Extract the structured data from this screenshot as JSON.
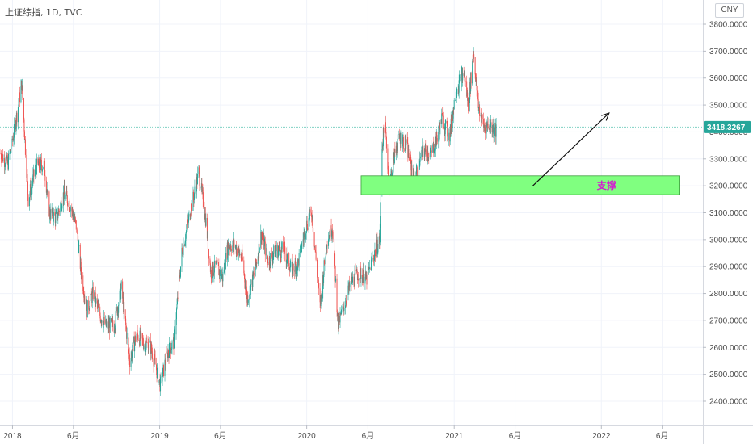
{
  "header": {
    "symbol_line": "上证综指, 1D, TVC",
    "currency": "CNY"
  },
  "chart_data": {
    "type": "candlestick",
    "title": "上证综指",
    "interval": "1D",
    "source": "TVC",
    "currency": "CNY",
    "ylim": [
      2310,
      3890
    ],
    "y_ticks": [
      2400,
      2500,
      2600,
      2700,
      2800,
      2900,
      3000,
      3100,
      3200,
      3300,
      3400,
      3500,
      3600,
      3700,
      3800
    ],
    "y_tick_labels": [
      "2400.0000",
      "2500.0000",
      "2600.0000",
      "2700.0000",
      "2800.0000",
      "2900.0000",
      "3000.0000",
      "3100.0000",
      "3200.0000",
      "3300.0000",
      "3400.0000",
      "3500.0000",
      "3600.0000",
      "3700.0000",
      "3800.0000"
    ],
    "x_ticks": [
      {
        "label": "2018",
        "date": "2018-01-01"
      },
      {
        "label": "6月",
        "date": "2018-06-01"
      },
      {
        "label": "2019",
        "date": "2019-01-01"
      },
      {
        "label": "6月",
        "date": "2019-06-01"
      },
      {
        "label": "2020",
        "date": "2020-01-01"
      },
      {
        "label": "6月",
        "date": "2020-06-01"
      },
      {
        "label": "2021",
        "date": "2021-01-01"
      },
      {
        "label": "6月",
        "date": "2021-06-01"
      },
      {
        "label": "2022",
        "date": "2022-01-01"
      },
      {
        "label": "6月",
        "date": "2022-06-01"
      }
    ],
    "last_price": 3418.3267,
    "last_price_label": "3418.3267",
    "price_path": [
      [
        "2017-12-01",
        3320
      ],
      [
        "2017-12-20",
        3280
      ],
      [
        "2018-01-05",
        3400
      ],
      [
        "2018-01-24",
        3580
      ],
      [
        "2018-02-09",
        3150
      ],
      [
        "2018-02-28",
        3270
      ],
      [
        "2018-03-20",
        3280
      ],
      [
        "2018-04-03",
        3100
      ],
      [
        "2018-04-20",
        3080
      ],
      [
        "2018-05-08",
        3170
      ],
      [
        "2018-05-22",
        3140
      ],
      [
        "2018-06-08",
        3050
      ],
      [
        "2018-06-20",
        2880
      ],
      [
        "2018-07-05",
        2740
      ],
      [
        "2018-07-20",
        2800
      ],
      [
        "2018-08-06",
        2720
      ],
      [
        "2018-08-20",
        2680
      ],
      [
        "2018-09-10",
        2680
      ],
      [
        "2018-09-28",
        2820
      ],
      [
        "2018-10-19",
        2550
      ],
      [
        "2018-11-05",
        2650
      ],
      [
        "2018-11-20",
        2620
      ],
      [
        "2018-12-10",
        2600
      ],
      [
        "2019-01-03",
        2460
      ],
      [
        "2019-01-20",
        2580
      ],
      [
        "2019-02-05",
        2620
      ],
      [
        "2019-02-25",
        2950
      ],
      [
        "2019-03-15",
        3080
      ],
      [
        "2019-04-08",
        3250
      ],
      [
        "2019-04-25",
        3080
      ],
      [
        "2019-05-08",
        2880
      ],
      [
        "2019-05-22",
        2900
      ],
      [
        "2019-06-06",
        2860
      ],
      [
        "2019-06-20",
        2980
      ],
      [
        "2019-07-05",
        2980
      ],
      [
        "2019-07-25",
        2930
      ],
      [
        "2019-08-06",
        2780
      ],
      [
        "2019-08-25",
        2880
      ],
      [
        "2019-09-10",
        3020
      ],
      [
        "2019-09-28",
        2920
      ],
      [
        "2019-10-15",
        2960
      ],
      [
        "2019-11-05",
        2960
      ],
      [
        "2019-11-25",
        2890
      ],
      [
        "2019-12-10",
        2910
      ],
      [
        "2019-12-30",
        3050
      ],
      [
        "2020-01-14",
        3100
      ],
      [
        "2020-02-03",
        2750
      ],
      [
        "2020-02-20",
        3000
      ],
      [
        "2020-03-05",
        3050
      ],
      [
        "2020-03-19",
        2680
      ],
      [
        "2020-04-01",
        2750
      ],
      [
        "2020-04-20",
        2840
      ],
      [
        "2020-05-10",
        2880
      ],
      [
        "2020-05-28",
        2850
      ],
      [
        "2020-06-15",
        2940
      ],
      [
        "2020-06-30",
        3000
      ],
      [
        "2020-07-06",
        3350
      ],
      [
        "2020-07-13",
        3430
      ],
      [
        "2020-07-24",
        3200
      ],
      [
        "2020-08-10",
        3350
      ],
      [
        "2020-08-20",
        3380
      ],
      [
        "2020-09-04",
        3350
      ],
      [
        "2020-09-25",
        3220
      ],
      [
        "2020-10-15",
        3330
      ],
      [
        "2020-11-05",
        3320
      ],
      [
        "2020-11-20",
        3380
      ],
      [
        "2020-12-01",
        3450
      ],
      [
        "2020-12-20",
        3380
      ],
      [
        "2021-01-05",
        3550
      ],
      [
        "2021-01-25",
        3620
      ],
      [
        "2021-02-05",
        3500
      ],
      [
        "2021-02-18",
        3700
      ],
      [
        "2021-03-01",
        3500
      ],
      [
        "2021-03-15",
        3420
      ],
      [
        "2021-04-01",
        3430
      ],
      [
        "2021-04-15",
        3400
      ]
    ],
    "annotations": {
      "support_zone": {
        "label": "支撑",
        "from": "2020-05-15",
        "to": "2022-07-15",
        "price_top": 3237,
        "price_bottom": 3167,
        "color": "#80ff80"
      },
      "arrow": {
        "from": {
          "date": "2021-07-15",
          "price": 3200
        },
        "to": {
          "date": "2022-01-20",
          "price": 3470
        }
      },
      "last_price_line": true
    },
    "colors": {
      "up": "#26a69a",
      "down": "#ef5350",
      "grid": "#f0f3fa",
      "price_line": "#7fd1c2",
      "price_tag": "#26a69a",
      "zone_label": "#d21fcf"
    },
    "grid": true,
    "legend": "top-left"
  }
}
